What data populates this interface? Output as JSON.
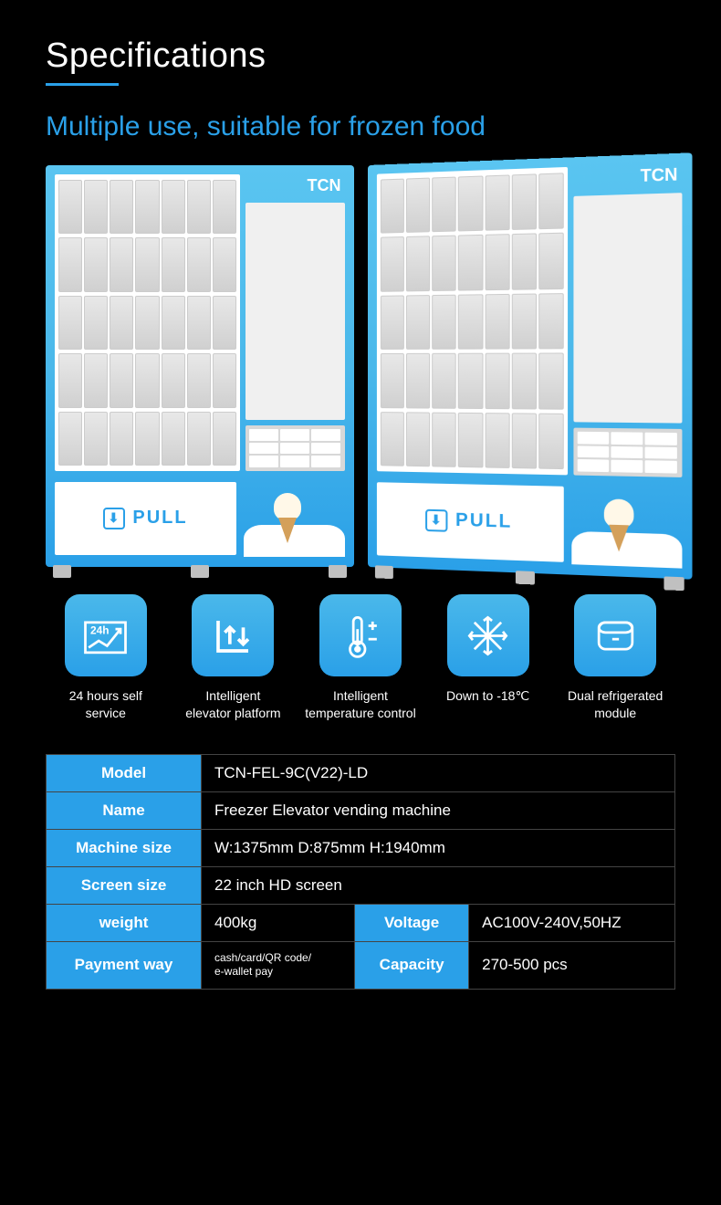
{
  "header": {
    "title": "Specifications",
    "subtitle": "Multiple use, suitable for frozen food"
  },
  "machine": {
    "brand": "TCN",
    "pull_label": "PULL"
  },
  "features": [
    {
      "id": "24h",
      "label": "24 hours self\nservice"
    },
    {
      "id": "elevator",
      "label": "Intelligent\nelevator platform"
    },
    {
      "id": "temp",
      "label": "Intelligent\ntemperature control"
    },
    {
      "id": "cold",
      "label": "Down to -18℃"
    },
    {
      "id": "dual",
      "label": "Dual refrigerated\nmodule"
    }
  ],
  "specs": {
    "model_label": "Model",
    "model_value": "TCN-FEL-9C(V22)-LD",
    "name_label": "Name",
    "name_value": "Freezer Elevator vending machine",
    "size_label": "Machine size",
    "size_value": "W:1375mm  D:875mm  H:1940mm",
    "screen_label": "Screen size",
    "screen_value": "22 inch HD screen",
    "weight_label": "weight",
    "weight_value": "400kg",
    "voltage_label": "Voltage",
    "voltage_value": "AC100V-240V,50HZ",
    "payment_label": "Payment way",
    "payment_value": "cash/card/QR code/\ne-wallet pay",
    "capacity_label": "Capacity",
    "capacity_value": "270-500 pcs"
  },
  "colors": {
    "accent": "#2aa0e8",
    "bg": "#000000",
    "text": "#ffffff"
  }
}
